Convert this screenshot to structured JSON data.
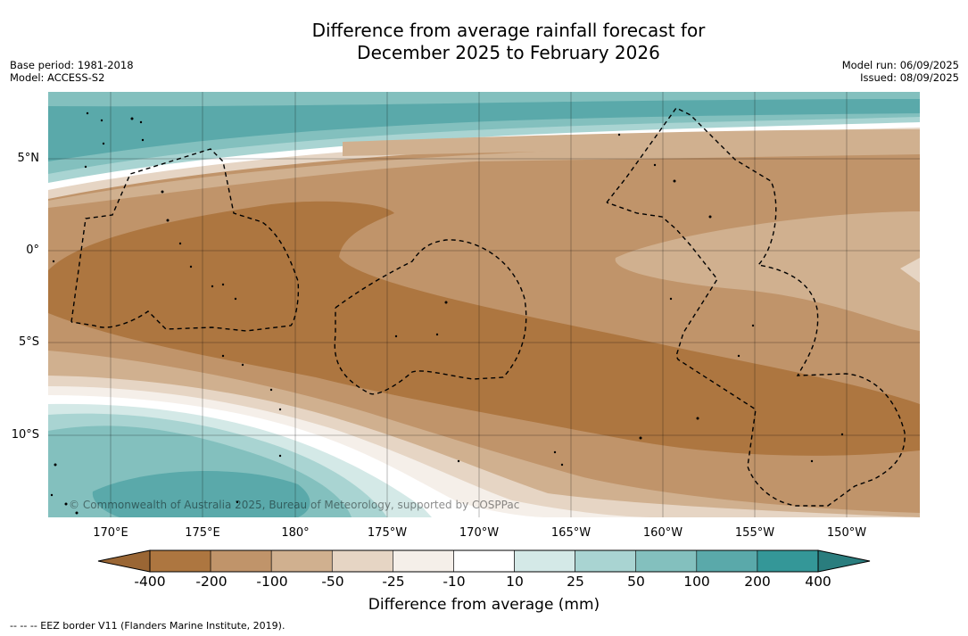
{
  "title": {
    "line1": "Difference from average rainfall forecast for",
    "line2": "December 2025 to February 2026"
  },
  "meta_left": {
    "base_period": "Base period: 1981-2018",
    "model": "Model: ACCESS-S2"
  },
  "meta_right": {
    "model_run": "Model run: 06/09/2025",
    "issued": "Issued: 08/09/2025"
  },
  "map": {
    "lat_labels": [
      "5°N",
      "0°",
      "5°S",
      "10°S"
    ],
    "lon_labels": [
      "170°E",
      "175°E",
      "180°",
      "175°W",
      "170°W",
      "165°W",
      "160°W",
      "155°W",
      "150°W"
    ],
    "copyright": "© Commonwealth of Australia 2025, Bureau of Meteorology, supported by COSPPac"
  },
  "colorbar": {
    "ticks": [
      "-400",
      "-200",
      "-100",
      "-50",
      "-25",
      "-10",
      "10",
      "25",
      "50",
      "100",
      "200",
      "400"
    ],
    "colors": [
      "#ad7640",
      "#c0946a",
      "#d0b08f",
      "#e6d5c4",
      "#f5efe9",
      "#ffffff",
      "#d4e9e7",
      "#a9d4d2",
      "#83c0be",
      "#5aa9aa",
      "#349798"
    ],
    "label": "Difference from average (mm)"
  },
  "footnote": "--  --  -- EEZ border V11 (Flanders Marine Institute, 2019)."
}
